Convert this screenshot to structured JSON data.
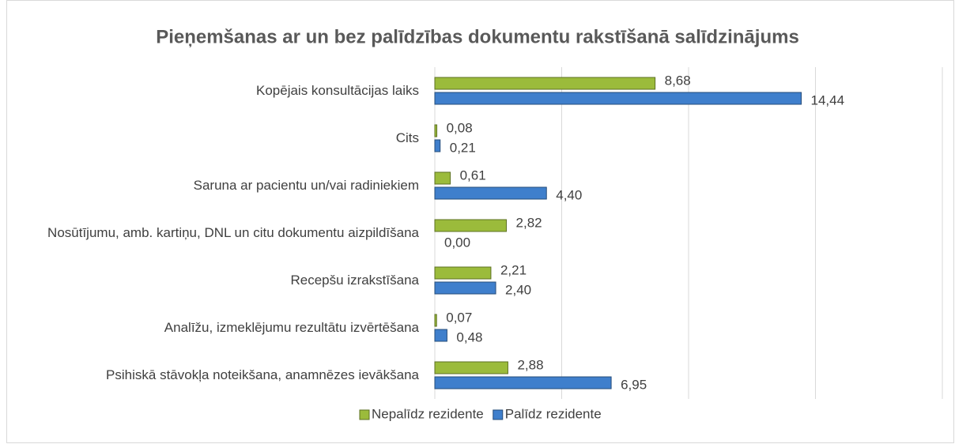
{
  "chart_data": {
    "type": "bar",
    "orientation": "horizontal",
    "title": "Pieņemšanas ar un bez palīdzības dokumentu rakstīšanā salīdzinājums",
    "categories": [
      "Kopējais konsultācijas laiks",
      "Cits",
      "Saruna ar pacientu un/vai radiniekiem",
      "Nosūtījumu, amb. kartiņu, DNL un citu dokumentu aizpildīšana",
      "Recepšu izrakstīšana",
      "Analīžu, izmeklējumu rezultātu izvērtēšana",
      "Psihiskā stāvokļa noteikšana, anamnēzes ievākšana"
    ],
    "series": [
      {
        "name": "Nepalīdz rezidente",
        "color": "#9bbb3b",
        "values": [
          8.68,
          0.08,
          0.61,
          2.82,
          2.21,
          0.07,
          2.88
        ],
        "value_labels": [
          "8,68",
          "0,08",
          "0,61",
          "2,82",
          "2,21",
          "0,07",
          "2,88"
        ]
      },
      {
        "name": "Palīdz rezidente",
        "color": "#3f7fcc",
        "values": [
          14.44,
          0.21,
          4.4,
          0.0,
          2.4,
          0.48,
          6.95
        ],
        "value_labels": [
          "14,44",
          "0,21",
          "4,40",
          "0,00",
          "2,40",
          "0,48",
          "6,95"
        ]
      }
    ],
    "xlim": [
      0,
      20
    ],
    "xticks": [
      0,
      5,
      10,
      15,
      20
    ],
    "grid": true,
    "legend": "bottom"
  }
}
